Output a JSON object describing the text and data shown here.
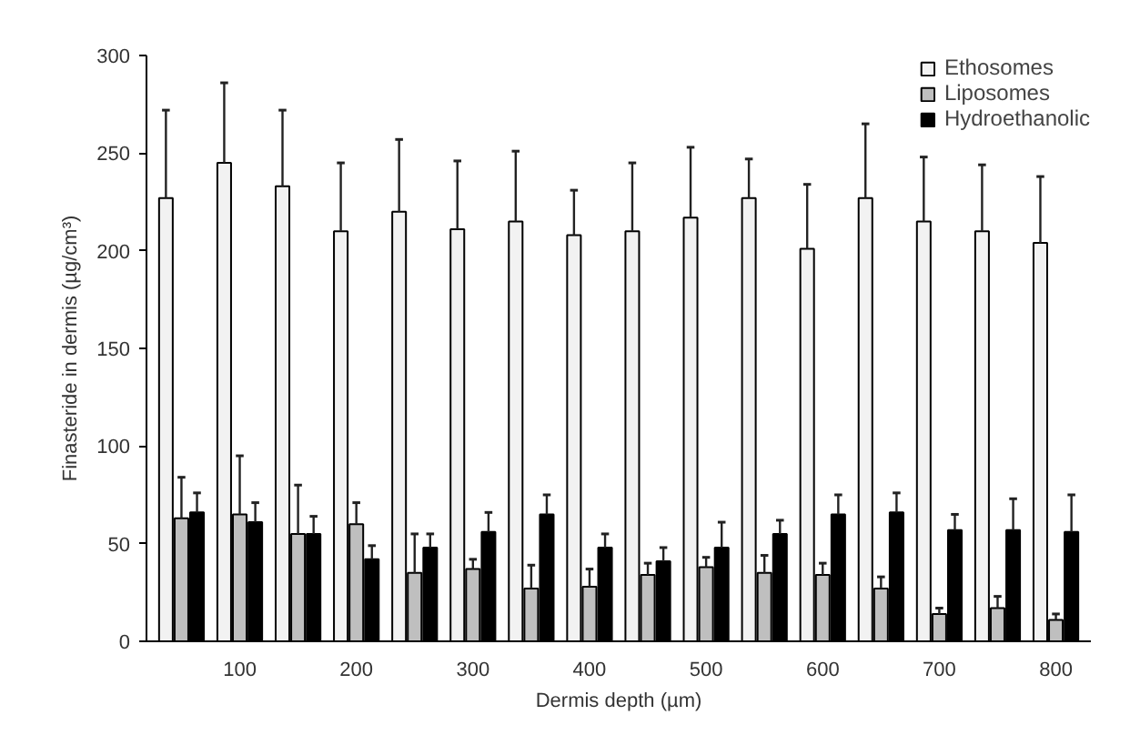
{
  "chart_data": {
    "type": "bar",
    "xlabel": "Dermis depth (µm)",
    "ylabel": "Finasteride in dermis (µg/cm³)",
    "categories": [
      null,
      "100",
      null,
      "200",
      null,
      "300",
      null,
      "400",
      null,
      "500",
      null,
      "600",
      null,
      "700",
      null,
      "800"
    ],
    "series": [
      {
        "name": "Ethosomes",
        "color": "#f2f2f2",
        "values": [
          227,
          245,
          233,
          210,
          220,
          211,
          215,
          208,
          210,
          217,
          227,
          201,
          227,
          215,
          210,
          204
        ],
        "errors": [
          [
            227,
            272
          ],
          [
            245,
            286
          ],
          [
            233,
            272
          ],
          [
            210,
            245
          ],
          [
            220,
            257
          ],
          [
            211,
            246
          ],
          [
            215,
            251
          ],
          [
            208,
            231
          ],
          [
            210,
            245
          ],
          [
            217,
            253
          ],
          [
            227,
            247
          ],
          [
            201,
            234
          ],
          [
            227,
            265
          ],
          [
            215,
            248
          ],
          [
            210,
            244
          ],
          [
            204,
            238
          ]
        ]
      },
      {
        "name": "Liposomes",
        "color": "#bfbfbf",
        "values": [
          63,
          65,
          55,
          60,
          35,
          37,
          27,
          28,
          34,
          38,
          35,
          34,
          27,
          14,
          17,
          11
        ],
        "errors": [
          [
            63,
            84
          ],
          [
            65,
            95
          ],
          [
            55,
            80
          ],
          [
            60,
            71
          ],
          [
            35,
            55
          ],
          [
            37,
            42
          ],
          [
            27,
            39
          ],
          [
            28,
            37
          ],
          [
            34,
            40
          ],
          [
            38,
            43
          ],
          [
            35,
            44
          ],
          [
            34,
            40
          ],
          [
            27,
            33
          ],
          [
            14,
            17
          ],
          [
            17,
            23
          ],
          [
            11,
            14
          ]
        ]
      },
      {
        "name": "Hydroethanolic",
        "color": "#000000",
        "values": [
          66,
          61,
          55,
          42,
          48,
          56,
          65,
          48,
          41,
          48,
          55,
          65,
          66,
          57,
          57,
          56
        ],
        "errors": [
          [
            66,
            76
          ],
          [
            61,
            71
          ],
          [
            55,
            64
          ],
          [
            42,
            49
          ],
          [
            48,
            55
          ],
          [
            56,
            66
          ],
          [
            65,
            75
          ],
          [
            48,
            55
          ],
          [
            41,
            48
          ],
          [
            48,
            61
          ],
          [
            55,
            62
          ],
          [
            65,
            75
          ],
          [
            66,
            76
          ],
          [
            57,
            65
          ],
          [
            57,
            73
          ],
          [
            56,
            75
          ]
        ]
      }
    ],
    "ylim": [
      0,
      300
    ],
    "yticks": [
      0,
      50,
      100,
      150,
      200,
      250,
      300
    ],
    "grid": false,
    "legend": "top right"
  }
}
